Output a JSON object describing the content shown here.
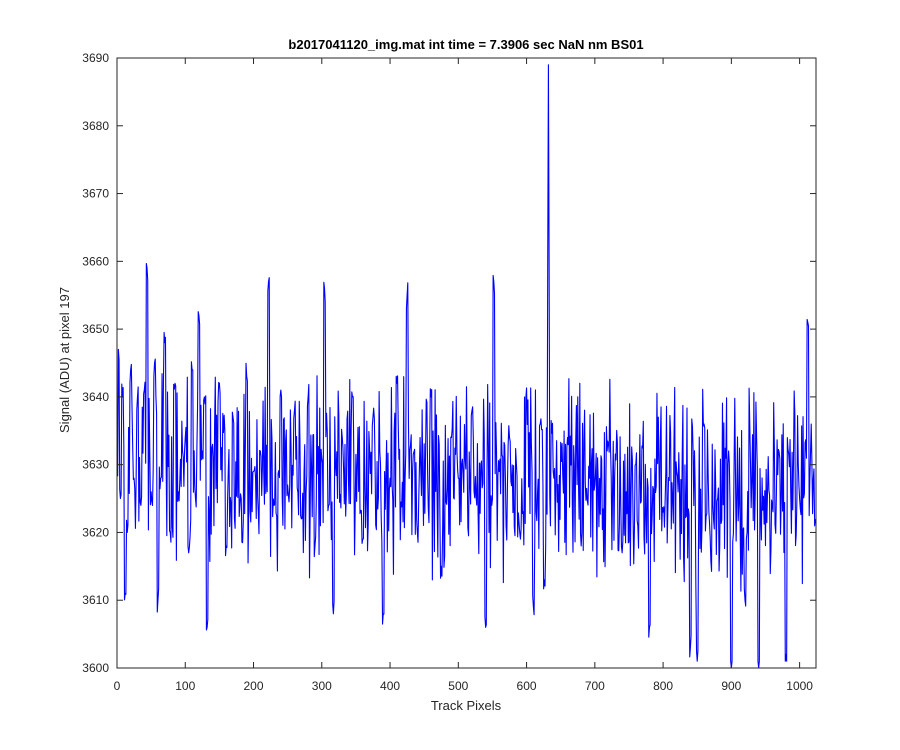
{
  "chart_data": {
    "type": "line",
    "title": "b2017041120_img.mat int time = 7.3906 sec  NaN nm BS01",
    "xlabel": "Track Pixels",
    "ylabel": "Signal (ADU) at pixel 197",
    "xlim": [
      0,
      1024
    ],
    "ylim": [
      3600,
      3690
    ],
    "xticks": [
      0,
      100,
      200,
      300,
      400,
      500,
      600,
      700,
      800,
      900,
      1000
    ],
    "yticks": [
      3600,
      3610,
      3620,
      3630,
      3640,
      3650,
      3660,
      3670,
      3680,
      3690
    ],
    "grid": false,
    "series": [
      {
        "color": "#0000ff",
        "description": "noisy signal trace, 1024 points",
        "anchors": {
          "x": [
            0,
            2,
            5,
            8,
            12,
            15,
            20,
            25,
            30,
            35,
            40,
            44,
            50,
            55,
            60,
            64,
            70,
            78,
            85,
            90,
            100,
            105,
            110,
            115,
            120,
            125,
            128,
            132,
            140,
            150,
            160,
            170,
            180,
            190,
            200,
            210,
            222,
            230,
            240,
            250,
            260,
            270,
            280,
            290,
            300,
            304,
            310,
            317,
            330,
            345,
            360,
            375,
            390,
            400,
            410,
            425,
            440,
            460,
            475,
            490,
            500,
            520,
            540,
            549,
            552,
            560,
            575,
            590,
            610,
            620,
            626,
            632,
            640,
            660,
            680,
            700,
            720,
            740,
            760,
            780,
            800,
            820,
            840,
            850,
            860,
            880,
            900,
            920,
            940,
            960,
            980,
            1000,
            1012,
            1023
          ],
          "y": [
            3630,
            3647,
            3625,
            3640,
            3611,
            3620,
            3644,
            3628,
            3640,
            3624,
            3641,
            3659,
            3626,
            3645,
            3610,
            3628,
            3648,
            3620,
            3642,
            3626,
            3634,
            3617,
            3644,
            3625,
            3652,
            3632,
            3640,
            3606,
            3633,
            3642,
            3618,
            3637,
            3624,
            3643,
            3629,
            3632,
            3657,
            3624,
            3641,
            3627,
            3638,
            3622,
            3640,
            3618,
            3631,
            3656,
            3624,
            3608,
            3634,
            3640,
            3619,
            3637,
            3608,
            3628,
            3642,
            3655,
            3620,
            3640,
            3615,
            3634,
            3628,
            3638,
            3606,
            3624,
            3657,
            3629,
            3634,
            3620,
            3609,
            3636,
            3613,
            3689,
            3628,
            3634,
            3618,
            3627,
            3633,
            3617,
            3630,
            3606,
            3623,
            3629,
            3603,
            3601,
            3636,
            3625,
            3600,
            3610,
            3600,
            3624,
            3602,
            3625,
            3651,
            3622
          ]
        }
      }
    ]
  }
}
